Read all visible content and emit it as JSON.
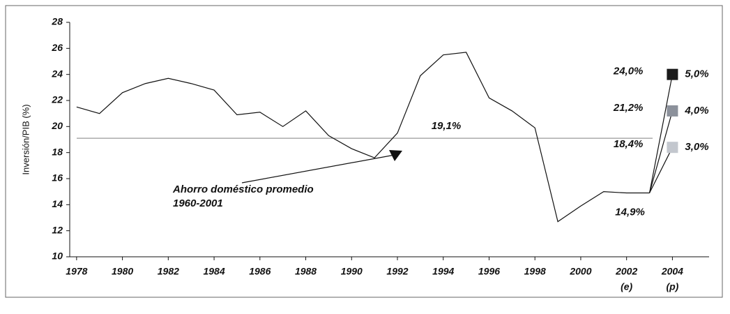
{
  "chart_data": {
    "type": "line",
    "y_label": "Inversión/PIB (%)",
    "x": [
      1978,
      1979,
      1980,
      1981,
      1982,
      1983,
      1984,
      1985,
      1986,
      1987,
      1988,
      1989,
      1990,
      1991,
      1992,
      1993,
      1994,
      1995,
      1996,
      1997,
      1998,
      1999,
      2000,
      2001,
      2002,
      2003
    ],
    "values": [
      21.5,
      21.0,
      22.6,
      23.3,
      23.7,
      23.3,
      22.8,
      20.9,
      21.1,
      20.0,
      21.2,
      19.3,
      18.3,
      17.6,
      19.5,
      23.9,
      25.5,
      25.7,
      22.2,
      21.2,
      19.9,
      12.7,
      13.9,
      15.0,
      14.9,
      14.9
    ],
    "value_labels": [
      null,
      null,
      null,
      null,
      null,
      null,
      null,
      null,
      null,
      null,
      null,
      null,
      null,
      null,
      null,
      null,
      null,
      null,
      null,
      null,
      null,
      null,
      null,
      null,
      null,
      "14,9%"
    ],
    "color": "#111111",
    "scenarios": [
      {
        "name": "5,0%",
        "color": "#1a1a1a",
        "x": [
          2003,
          2004
        ],
        "values": [
          14.9,
          24.0
        ],
        "value_labels": [
          null,
          "24,0%"
        ]
      },
      {
        "name": "4,0%",
        "color": "#8c919b",
        "x": [
          2003,
          2004
        ],
        "values": [
          14.9,
          21.2
        ],
        "value_labels": [
          null,
          "21,2%"
        ]
      },
      {
        "name": "3,0%",
        "color": "#c3c7ce",
        "x": [
          2003,
          2004
        ],
        "values": [
          14.9,
          18.4
        ],
        "value_labels": [
          null,
          "18,4%"
        ]
      }
    ],
    "reference_line": {
      "value": 19.1,
      "label": "19,1%",
      "color": "#999999"
    },
    "annotation": [
      "Ahorro doméstico promedio",
      "1960-2001"
    ],
    "xtick_notes": [
      {
        "x": 2002,
        "label": "(e)"
      },
      {
        "x": 2004,
        "label": "(p)"
      }
    ],
    "xlim": [
      1977.7,
      2005.6
    ],
    "xticks": [
      1978,
      1980,
      1982,
      1984,
      1986,
      1988,
      1990,
      1992,
      1994,
      1996,
      1998,
      2000,
      2002,
      2004
    ],
    "ylim": [
      10,
      28
    ],
    "yticks": [
      10,
      12,
      14,
      16,
      18,
      20,
      22,
      24,
      26,
      28
    ]
  }
}
